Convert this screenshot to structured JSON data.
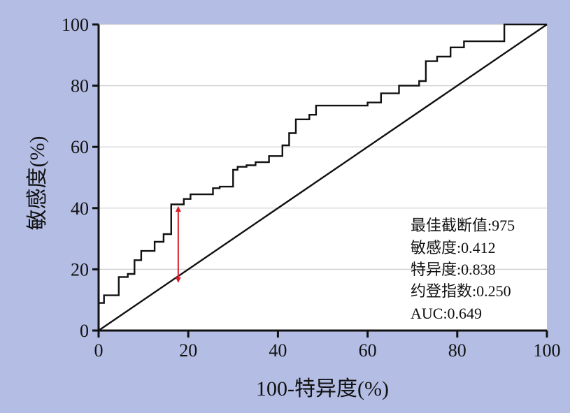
{
  "chart_data": {
    "type": "line",
    "title": "",
    "xlabel": "100-特异度(%)",
    "ylabel": "敏感度(%)",
    "xlim": [
      0,
      100
    ],
    "ylim": [
      0,
      100
    ],
    "x_ticks": [
      "0",
      "20",
      "40",
      "60",
      "80",
      "100"
    ],
    "y_ticks": [
      "0",
      "20",
      "40",
      "60",
      "80",
      "100"
    ],
    "grid": "horizontal",
    "series": [
      {
        "points": [
          [
            0,
            0
          ],
          [
            0,
            9
          ],
          [
            1.2,
            9
          ],
          [
            1.2,
            11.5
          ],
          [
            4.5,
            11.5
          ],
          [
            4.5,
            17.5
          ],
          [
            6.5,
            17.5
          ],
          [
            6.5,
            18.5
          ],
          [
            8,
            18.5
          ],
          [
            8,
            23
          ],
          [
            9.5,
            23
          ],
          [
            9.5,
            26
          ],
          [
            12.5,
            26
          ],
          [
            12.5,
            29
          ],
          [
            14.5,
            29
          ],
          [
            14.5,
            31.5
          ],
          [
            16.2,
            31.5
          ],
          [
            16.2,
            41.2
          ],
          [
            19,
            41.2
          ],
          [
            19,
            43
          ],
          [
            20.5,
            43
          ],
          [
            20.5,
            44.5
          ],
          [
            25.5,
            44.5
          ],
          [
            25.5,
            46.5
          ],
          [
            27,
            46.5
          ],
          [
            27,
            47
          ],
          [
            30,
            47
          ],
          [
            30,
            52.5
          ],
          [
            31,
            52.5
          ],
          [
            31,
            53.5
          ],
          [
            33,
            53.5
          ],
          [
            33,
            54
          ],
          [
            35,
            54
          ],
          [
            35,
            55
          ],
          [
            38,
            55
          ],
          [
            38,
            57
          ],
          [
            41,
            57
          ],
          [
            41,
            60.5
          ],
          [
            42.5,
            60.5
          ],
          [
            42.5,
            64.5
          ],
          [
            44,
            64.5
          ],
          [
            44,
            69
          ],
          [
            47,
            69
          ],
          [
            47,
            70.5
          ],
          [
            48.5,
            70.5
          ],
          [
            48.5,
            73.5
          ],
          [
            60,
            73.5
          ],
          [
            60,
            74.5
          ],
          [
            63,
            74.5
          ],
          [
            63,
            77.5
          ],
          [
            67,
            77.5
          ],
          [
            67,
            80
          ],
          [
            71.5,
            80
          ],
          [
            71.5,
            81.5
          ],
          [
            73,
            81.5
          ],
          [
            73,
            88
          ],
          [
            75.5,
            88
          ],
          [
            75.5,
            89.5
          ],
          [
            78.5,
            89.5
          ],
          [
            78.5,
            92.5
          ],
          [
            81.5,
            92.5
          ],
          [
            81.5,
            94.5
          ],
          [
            90.5,
            94.5
          ],
          [
            90.5,
            100
          ],
          [
            100,
            100
          ]
        ]
      },
      {
        "points": [
          [
            0,
            0
          ],
          [
            100,
            100
          ]
        ]
      }
    ],
    "annotations": {
      "arrow": {
        "x": 16.2,
        "y_from": 41.2,
        "y_to": 16.2
      },
      "lines": [
        "最佳截断值:975",
        "敏感度:0.412",
        "特异度:0.838",
        "约登指数:0.250",
        "AUC:0.649"
      ]
    },
    "colors": {
      "background": "#b4bde3",
      "plot_area": "#ffffff",
      "roc_line": "#111111",
      "diagonal": "#111111",
      "arrow": "#d81e2c",
      "grid": "#d0d0d0"
    }
  }
}
